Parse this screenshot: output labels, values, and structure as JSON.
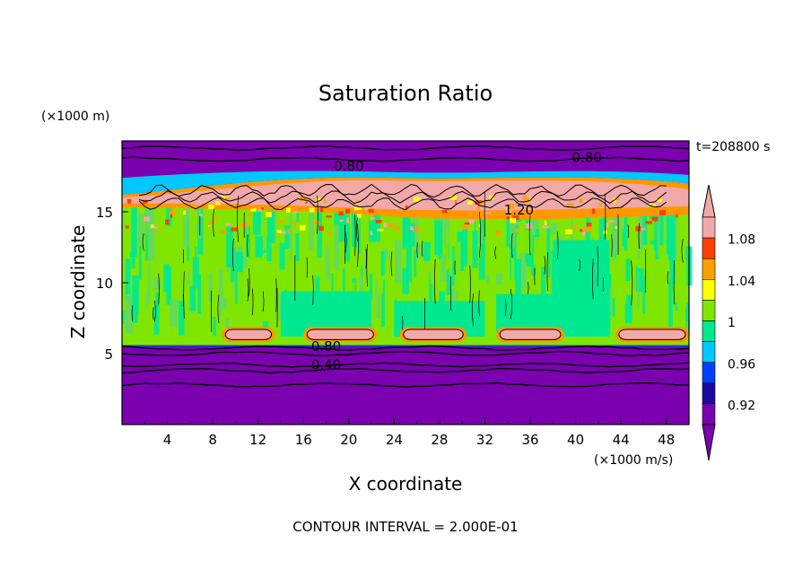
{
  "chart_data": {
    "type": "heatmap",
    "title": "Saturation Ratio",
    "xlabel": "X coordinate",
    "ylabel": "Z coordinate",
    "x_unit": "(×1000 m/s)",
    "y_unit": "(×1000 m)",
    "time_label": "t=208800 s",
    "footer": "CONTOUR INTERVAL = 2.000E-01",
    "xlim": [
      0,
      50
    ],
    "ylim": [
      0,
      20
    ],
    "x_ticks": [
      4,
      8,
      12,
      16,
      20,
      24,
      28,
      32,
      36,
      40,
      44,
      48
    ],
    "y_ticks": [
      5,
      10,
      15
    ],
    "colorbar": {
      "levels": [
        0.92,
        0.94,
        0.96,
        0.98,
        1.0,
        1.02,
        1.04,
        1.06,
        1.08,
        1.1
      ],
      "colors": [
        "#7b00b0",
        "#1c0aa0",
        "#0040ff",
        "#00c8ff",
        "#00e890",
        "#80e600",
        "#ffff00",
        "#ffa000",
        "#ff4000",
        "#f2a8a8"
      ],
      "tick_labels": [
        "0.92",
        "0.96",
        "1",
        "1.04",
        "1.08"
      ],
      "tick_values": [
        0.92,
        0.96,
        1.0,
        1.04,
        1.08
      ],
      "extend": "both"
    },
    "contour_labels": [
      {
        "text": "0.80",
        "x": 20,
        "y": 17.9
      },
      {
        "text": "0.80",
        "x": 41,
        "y": 18.5
      },
      {
        "text": "1.20",
        "x": 35,
        "y": 14.8
      },
      {
        "text": "0.80",
        "x": 18,
        "y": 5.2
      },
      {
        "text": "0.40",
        "x": 18,
        "y": 3.9
      }
    ],
    "contour_lines_z": [
      19.5,
      18.7,
      5.4,
      5.0,
      4.2,
      3.8,
      2.8
    ]
  }
}
